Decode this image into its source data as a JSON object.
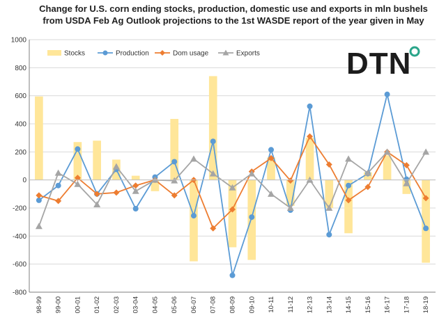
{
  "title": "Change for U.S. corn ending stocks, production, domestic use and exports in mln bushels from USDA Feb Ag Outlook projections to the 1st WASDE report of the year given in May",
  "logo": {
    "text": "DTN",
    "icon": "dtn-swirl-icon",
    "accent": "#2aa58a"
  },
  "chart_data": {
    "type": "bar",
    "categories": [
      "98-99",
      "99-00",
      "00-01",
      "01-02",
      "02-03",
      "03-04",
      "04-05",
      "05-06",
      "06-07",
      "07-08",
      "08-09",
      "09-10",
      "10-11",
      "11-12",
      "12-13",
      "13-14",
      "14-15",
      "15-16",
      "16-17",
      "17-18",
      "18-19"
    ],
    "y_ticks": [
      "1000",
      "800",
      "600",
      "400",
      "200",
      "0",
      "-200",
      "-400",
      "-600",
      "-800"
    ],
    "ylim": [
      -800,
      1000
    ],
    "grid": true,
    "legend_position": "top",
    "series": [
      {
        "name": "Stocks",
        "type": "bar",
        "color": "#ffe699",
        "values": [
          595,
          0,
          270,
          280,
          145,
          30,
          -80,
          435,
          -580,
          740,
          -480,
          -570,
          160,
          -185,
          300,
          -200,
          -380,
          55,
          175,
          -100,
          -590
        ]
      },
      {
        "name": "Production",
        "type": "line",
        "color": "#5b9bd5",
        "marker": "circle",
        "values": [
          -145,
          -40,
          220,
          -100,
          75,
          -205,
          20,
          130,
          -255,
          275,
          -680,
          -265,
          215,
          -215,
          525,
          -390,
          -40,
          45,
          610,
          5,
          -345
        ]
      },
      {
        "name": "Dom usage",
        "type": "line",
        "color": "#ed7d31",
        "marker": "diamond",
        "values": [
          -110,
          -150,
          15,
          -100,
          -90,
          -40,
          0,
          -110,
          0,
          -345,
          -210,
          60,
          155,
          -5,
          310,
          110,
          -145,
          -50,
          200,
          105,
          -130
        ]
      },
      {
        "name": "Exports",
        "type": "line",
        "color": "#a5a5a5",
        "marker": "triangle",
        "values": [
          -330,
          50,
          -30,
          -175,
          95,
          -80,
          0,
          -5,
          150,
          45,
          -55,
          45,
          -100,
          -200,
          0,
          -200,
          150,
          50,
          200,
          -25,
          200
        ]
      }
    ]
  }
}
